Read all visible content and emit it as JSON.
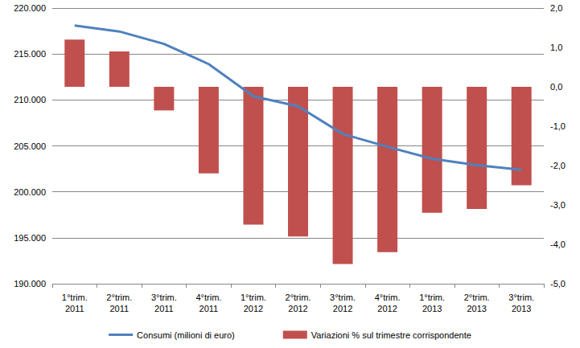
{
  "chart_data": {
    "type": "bar",
    "categories": [
      "1°trim.\n2011",
      "2°trim.\n2011",
      "3°trim.\n2011",
      "4°trim.\n2011",
      "1°trim.\n2012",
      "2°trim.\n2012",
      "3°trim.\n2012",
      "4°trim.\n2012",
      "1°trim.\n2013",
      "2°trim.\n2013",
      "3°trim.\n2013"
    ],
    "series": [
      {
        "name": "Consumi (milioni di euro)",
        "type": "line",
        "color": "#4f81bd",
        "marker": "none",
        "values": [
          218100,
          217450,
          216100,
          213900,
          210400,
          209300,
          206300,
          204900,
          203600,
          202900,
          202400
        ]
      },
      {
        "name": "Variazioni % sul trimestre corrispondente",
        "type": "bar",
        "color": "#c0504d",
        "axis": "y2",
        "values": [
          1.2,
          0.9,
          -0.6,
          -2.2,
          -3.5,
          -3.8,
          -4.5,
          -4.2,
          -3.2,
          -3.1,
          -2.5
        ]
      }
    ],
    "ylim": [
      190000,
      220000
    ],
    "yticks": [
      {
        "value": 190000,
        "label": "190.000"
      },
      {
        "value": 195000,
        "label": "195.000"
      },
      {
        "value": 200000,
        "label": "200.000"
      },
      {
        "value": 205000,
        "label": "205.000"
      },
      {
        "value": 210000,
        "label": "210.000"
      },
      {
        "value": 215000,
        "label": "215.000"
      },
      {
        "value": 220000,
        "label": "220.000"
      }
    ],
    "y2lim": [
      -5,
      2
    ],
    "y2ticks": [
      {
        "value": -5,
        "label": "-5,0"
      },
      {
        "value": -4,
        "label": "-4,0"
      },
      {
        "value": -3,
        "label": "-3,0"
      },
      {
        "value": -2,
        "label": "-2,0"
      },
      {
        "value": -1,
        "label": "-1,0"
      },
      {
        "value": 0,
        "label": "0,0"
      },
      {
        "value": 1,
        "label": "1,0"
      },
      {
        "value": 2,
        "label": "2,0"
      }
    ],
    "grid": true,
    "legend": "bottom"
  }
}
